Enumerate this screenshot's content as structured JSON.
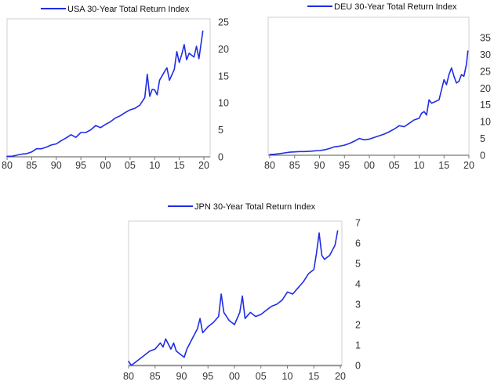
{
  "series_color": "#1f2de6",
  "chart_data": [
    {
      "id": "usa",
      "type": "line",
      "title": "",
      "xlabel": "",
      "ylabel": "",
      "legend": "USA 30-Year Total Return Index",
      "legend_position": "top-left",
      "grid": false,
      "y_axis_side": "right",
      "xlim": [
        1980,
        2020
      ],
      "ylim": [
        0,
        25
      ],
      "x_ticks": [
        1980,
        1985,
        1990,
        1995,
        2000,
        2005,
        2010,
        2015,
        2020
      ],
      "x_tick_labels": [
        "80",
        "85",
        "90",
        "95",
        "00",
        "05",
        "10",
        "15",
        "20"
      ],
      "y_ticks": [
        0,
        5,
        10,
        15,
        20,
        25
      ],
      "y_tick_labels": [
        "0",
        "5",
        "10",
        "15",
        "20",
        "25"
      ],
      "x": [
        1980,
        1981,
        1982,
        1983,
        1984,
        1985,
        1986,
        1987,
        1988,
        1989,
        1990,
        1991,
        1992,
        1993,
        1994,
        1995,
        1996,
        1997,
        1998,
        1999,
        2000,
        2001,
        2002,
        2003,
        2004,
        2005,
        2006,
        2007,
        2008,
        2008.5,
        2009,
        2009.5,
        2010,
        2010.5,
        2011,
        2012,
        2012.5,
        2013,
        2014,
        2014.5,
        2015,
        2015.5,
        2016,
        2016.5,
        2017,
        2018,
        2018.5,
        2019,
        2019.5,
        2019.8
      ],
      "values": [
        0.1,
        0.1,
        0.3,
        0.5,
        0.6,
        0.9,
        1.5,
        1.5,
        1.8,
        2.2,
        2.4,
        3.0,
        3.5,
        4.1,
        3.6,
        4.5,
        4.5,
        5.0,
        5.8,
        5.4,
        6.0,
        6.5,
        7.2,
        7.6,
        8.2,
        8.7,
        9.0,
        9.6,
        11.0,
        15.3,
        11.2,
        12.5,
        12.4,
        11.5,
        14.2,
        15.8,
        16.5,
        14.2,
        16.2,
        19.5,
        17.5,
        19.0,
        20.8,
        18.0,
        19.2,
        18.5,
        20.5,
        18.2,
        21.5,
        23.3
      ]
    },
    {
      "id": "deu",
      "type": "line",
      "title": "",
      "xlabel": "",
      "ylabel": "",
      "legend": "DEU 30-Year Total Return Index",
      "legend_position": "top-left",
      "grid": false,
      "y_axis_side": "right",
      "xlim": [
        1980,
        2020
      ],
      "ylim": [
        0,
        35
      ],
      "x_ticks": [
        1980,
        1985,
        1990,
        1995,
        2000,
        2005,
        2010,
        2015,
        2020
      ],
      "x_tick_labels": [
        "80",
        "85",
        "90",
        "95",
        "00",
        "05",
        "10",
        "15",
        "20"
      ],
      "y_ticks": [
        0,
        5,
        10,
        15,
        20,
        25,
        30,
        35
      ],
      "y_tick_labels": [
        "0",
        "5",
        "10",
        "15",
        "20",
        "25",
        "30",
        "35"
      ],
      "x": [
        1980,
        1981,
        1982,
        1983,
        1984,
        1985,
        1986,
        1987,
        1988,
        1989,
        1990,
        1991,
        1992,
        1993,
        1994,
        1995,
        1996,
        1997,
        1998,
        1999,
        2000,
        2001,
        2002,
        2003,
        2004,
        2005,
        2006,
        2007,
        2008,
        2009,
        2010,
        2010.5,
        2011,
        2011.5,
        2012,
        2012.5,
        2013,
        2014,
        2014.5,
        2015,
        2015.5,
        2016,
        2016.5,
        2017,
        2017.5,
        2018,
        2018.5,
        2019,
        2019.5,
        2019.8
      ],
      "values": [
        0.2,
        0.3,
        0.5,
        0.7,
        0.9,
        1.0,
        1.1,
        1.1,
        1.2,
        1.3,
        1.4,
        1.6,
        2.0,
        2.5,
        2.7,
        3.0,
        3.5,
        4.2,
        5.0,
        4.6,
        4.8,
        5.3,
        5.8,
        6.3,
        7.0,
        7.8,
        8.8,
        8.5,
        9.5,
        10.5,
        11.0,
        12.5,
        13.0,
        12.0,
        16.5,
        15.5,
        15.8,
        16.5,
        19.5,
        22.5,
        21.0,
        24.0,
        26.0,
        23.5,
        21.5,
        22.0,
        24.0,
        23.5,
        27.0,
        31.0
      ]
    },
    {
      "id": "jpn",
      "type": "line",
      "title": "",
      "xlabel": "",
      "ylabel": "",
      "legend": "JPN 30-Year Total Return Index",
      "legend_position": "top-left",
      "grid": false,
      "y_axis_side": "right",
      "xlim": [
        1980,
        2020
      ],
      "ylim": [
        0,
        7
      ],
      "x_ticks": [
        1980,
        1985,
        1990,
        1995,
        2000,
        2005,
        2010,
        2015,
        2020
      ],
      "x_tick_labels": [
        "80",
        "85",
        "90",
        "95",
        "00",
        "05",
        "10",
        "15",
        "20"
      ],
      "y_ticks": [
        0,
        1,
        2,
        3,
        4,
        5,
        6,
        7
      ],
      "y_tick_labels": [
        "0",
        "1",
        "2",
        "3",
        "4",
        "5",
        "6",
        "7"
      ],
      "x": [
        1980,
        1980.5,
        1981,
        1982,
        1983,
        1984,
        1985,
        1986,
        1986.5,
        1987,
        1988,
        1988.5,
        1989,
        1990,
        1990.5,
        1991,
        1992,
        1993,
        1993.5,
        1994,
        1995,
        1996,
        1997,
        1997.5,
        1998,
        1999,
        2000,
        2001,
        2001.5,
        2002,
        2003,
        2004,
        2005,
        2006,
        2007,
        2008,
        2009,
        2010,
        2011,
        2012,
        2013,
        2014,
        2015,
        2015.5,
        2016,
        2016.5,
        2017,
        2018,
        2019,
        2019.5
      ],
      "values": [
        0.2,
        0.0,
        0.1,
        0.3,
        0.5,
        0.7,
        0.8,
        1.1,
        0.9,
        1.3,
        0.8,
        1.1,
        0.7,
        0.5,
        0.4,
        0.8,
        1.3,
        1.8,
        2.3,
        1.6,
        1.9,
        2.1,
        2.4,
        3.5,
        2.6,
        2.2,
        2.0,
        2.6,
        3.4,
        2.3,
        2.6,
        2.4,
        2.5,
        2.7,
        2.9,
        3.0,
        3.2,
        3.6,
        3.5,
        3.8,
        4.1,
        4.5,
        4.7,
        5.5,
        6.5,
        5.4,
        5.2,
        5.4,
        5.9,
        6.6
      ]
    }
  ]
}
